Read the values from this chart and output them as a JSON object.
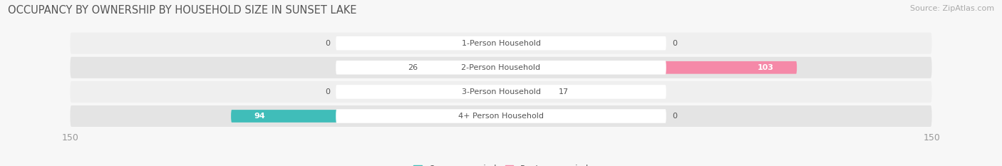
{
  "title": "OCCUPANCY BY OWNERSHIP BY HOUSEHOLD SIZE IN SUNSET LAKE",
  "source": "Source: ZipAtlas.com",
  "categories": [
    "1-Person Household",
    "2-Person Household",
    "3-Person Household",
    "4+ Person Household"
  ],
  "owner_values": [
    0,
    26,
    0,
    94
  ],
  "renter_values": [
    0,
    103,
    17,
    0
  ],
  "owner_color": "#40bdb9",
  "renter_color": "#f589a8",
  "row_bg_light": "#efefef",
  "row_bg_dark": "#e4e4e4",
  "capsule_color": "#e8e8e8",
  "axis_limit": 150,
  "title_fontsize": 10.5,
  "source_fontsize": 8,
  "tick_fontsize": 9,
  "value_fontsize": 8,
  "category_fontsize": 8,
  "legend_fontsize": 8.5,
  "background_color": "#f7f7f7",
  "text_color": "#555555",
  "tick_color": "#999999"
}
